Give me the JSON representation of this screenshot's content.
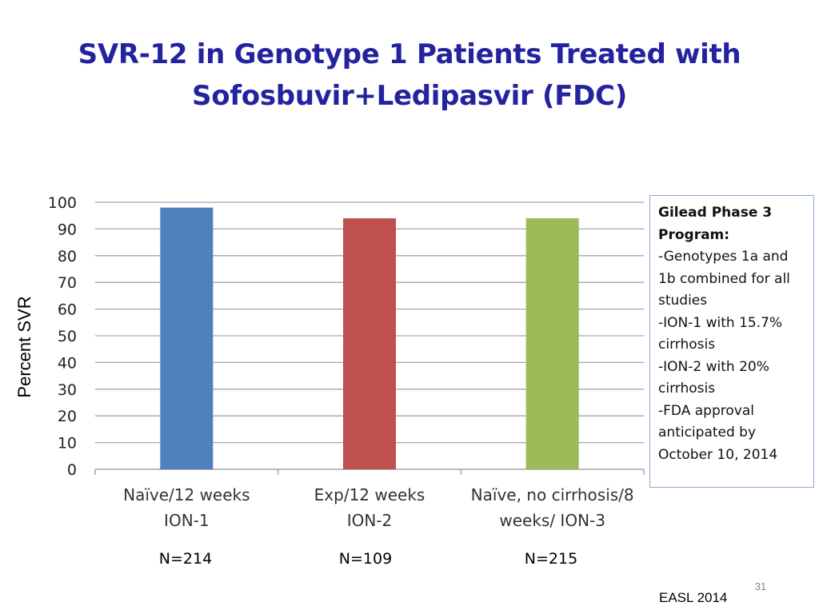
{
  "slide": {
    "title_line1": "SVR-12 in Genotype 1 Patients Treated with",
    "title_line2": "Sofosbuvir+Ledipasvir (FDC)",
    "page_number": "31",
    "source": "EASL 2014"
  },
  "note_box": {
    "heading_line1": "Gilead Phase 3",
    "heading_line2": "Program:",
    "lines": [
      "-Genotypes 1a and",
      "1b combined for all",
      "studies",
      "-ION-1 with 15.7%",
      "cirrhosis",
      "-ION-2 with 20%",
      "cirrhosis",
      "-FDA approval",
      "anticipated by",
      "October 10, 2014"
    ]
  },
  "sample_sizes": [
    "N=214",
    "N=109",
    "N=215"
  ],
  "colors": {
    "title": "#2323a0",
    "grid": "#a6a6a6"
  },
  "chart_data": {
    "type": "bar",
    "title": "",
    "xlabel": "",
    "ylabel": "Percent SVR",
    "ylim": [
      0,
      100
    ],
    "yticks": [
      "0",
      "10",
      "20",
      "30",
      "40",
      "50",
      "60",
      "70",
      "80",
      "90",
      "100"
    ],
    "grid": true,
    "categories": [
      [
        "Naïve/12 weeks",
        "ION-1"
      ],
      [
        "Exp/12 weeks",
        "ION-2"
      ],
      [
        "Naïve, no cirrhosis/8",
        "weeks/ ION-3"
      ]
    ],
    "values": [
      98,
      94,
      94
    ],
    "bar_colors": [
      "#4f81bd",
      "#c0504d",
      "#9bbb59"
    ]
  }
}
